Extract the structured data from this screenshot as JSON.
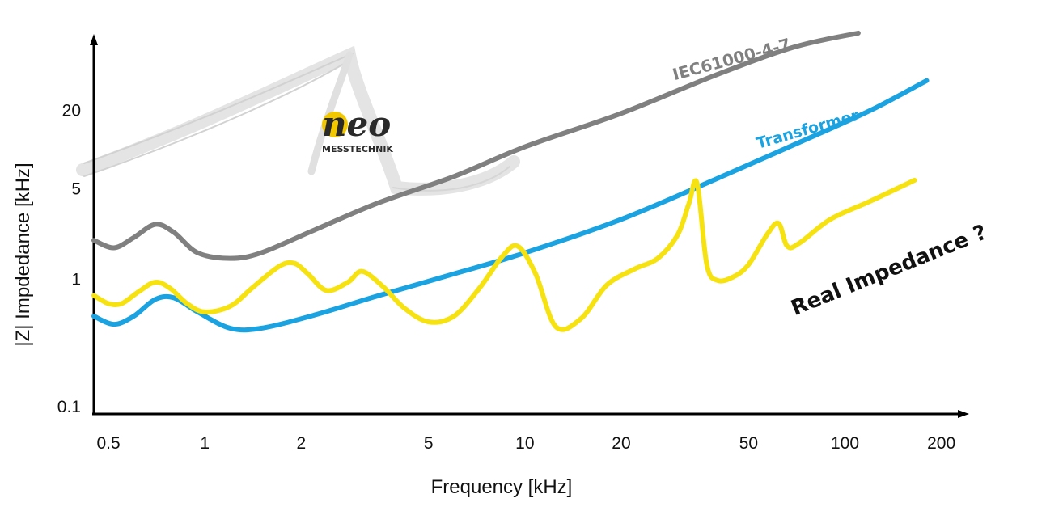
{
  "chart_data": {
    "type": "line",
    "title": "",
    "xlabel": "Frequency [kHz]",
    "ylabel": "|Z|  Impdedance  [kHz]",
    "xscale": "log",
    "yscale": "log",
    "xlim": [
      0.45,
      220
    ],
    "ylim": [
      0.1,
      80
    ],
    "x_ticks": [
      {
        "value": 0.5,
        "label": "0.5"
      },
      {
        "value": 1,
        "label": "1"
      },
      {
        "value": 2,
        "label": "2"
      },
      {
        "value": 5,
        "label": "5"
      },
      {
        "value": 10,
        "label": "10"
      },
      {
        "value": 20,
        "label": "20"
      },
      {
        "value": 50,
        "label": "50"
      },
      {
        "value": 100,
        "label": "100"
      },
      {
        "value": 200,
        "label": "200"
      }
    ],
    "y_ticks": [
      {
        "value": 0.1,
        "label": "0.1"
      },
      {
        "value": 1,
        "label": "1"
      },
      {
        "value": 5,
        "label": "5"
      },
      {
        "value": 20,
        "label": "20"
      }
    ],
    "grid": false,
    "series": [
      {
        "name": "IEC61000-4-7",
        "label": "IEC61000-4-7",
        "color": "#808080",
        "x": [
          0.45,
          0.52,
          0.6,
          0.7,
          0.8,
          0.95,
          1.2,
          1.5,
          2.2,
          3.5,
          6,
          10,
          20,
          40,
          70,
          110
        ],
        "y": [
          2.0,
          1.75,
          2.1,
          2.65,
          2.3,
          1.6,
          1.45,
          1.6,
          2.4,
          3.9,
          6.2,
          10.5,
          19,
          38,
          62,
          79
        ]
      },
      {
        "name": "Transformer",
        "label": "Transformer",
        "color": "#1aa3e0",
        "x": [
          0.45,
          0.52,
          0.6,
          0.7,
          0.8,
          0.95,
          1.2,
          1.5,
          2.2,
          3.5,
          6,
          10,
          20,
          40,
          70,
          120,
          180
        ],
        "y": [
          0.52,
          0.45,
          0.52,
          0.7,
          0.72,
          0.56,
          0.42,
          0.42,
          0.53,
          0.75,
          1.1,
          1.6,
          2.9,
          6.0,
          11,
          20,
          34
        ]
      },
      {
        "name": "Real Impedance ?",
        "label": "Real Impedance ?",
        "color": "#f7e211",
        "x": [
          0.45,
          0.5,
          0.55,
          0.62,
          0.7,
          0.78,
          0.88,
          1.0,
          1.2,
          1.4,
          1.7,
          1.9,
          2.1,
          2.4,
          2.8,
          3.1,
          3.6,
          4.2,
          5.0,
          6.0,
          7.2,
          8.5,
          9.5,
          10.8,
          12.5,
          15,
          18,
          22,
          26,
          30,
          32.5,
          34.5,
          37,
          40,
          45,
          50,
          57,
          62,
          66,
          72,
          90,
          120,
          165
        ],
        "y": [
          0.75,
          0.65,
          0.65,
          0.8,
          0.95,
          0.85,
          0.65,
          0.56,
          0.62,
          0.85,
          1.25,
          1.33,
          1.1,
          0.82,
          0.95,
          1.15,
          0.88,
          0.6,
          0.47,
          0.52,
          0.85,
          1.5,
          1.8,
          1.1,
          0.43,
          0.5,
          0.9,
          1.2,
          1.45,
          2.2,
          3.8,
          5.5,
          1.3,
          0.98,
          1.05,
          1.3,
          2.2,
          2.7,
          1.8,
          1.9,
          2.9,
          4.0,
          5.8
        ]
      }
    ],
    "annotations": [
      {
        "text": "IEC61000-4-7",
        "color": "#808080"
      },
      {
        "text": "Transformer",
        "color": "#1aa3e0"
      },
      {
        "text": "Real Impedance ?",
        "color": "#111111"
      }
    ]
  },
  "logo": {
    "word": "neo",
    "subtitle": "MESSTECHNIK",
    "accent_color": "#f2c800",
    "dark_color": "#2a2a2a"
  }
}
